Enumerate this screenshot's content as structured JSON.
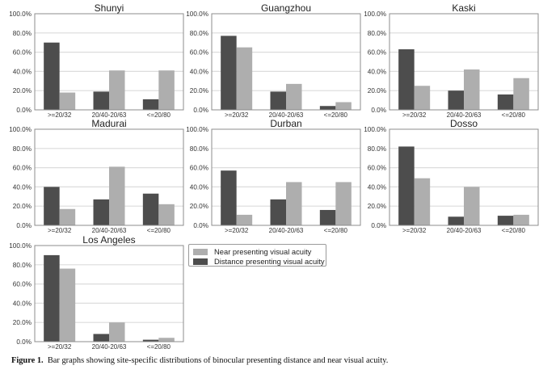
{
  "chart_data": {
    "type": "bar",
    "y_tick_labels": [
      "0.0%",
      "20.0%",
      "40.0%",
      "60.0%",
      "80.0%",
      "100.0%"
    ],
    "ylim": [
      0,
      100
    ],
    "grid": true,
    "categories": [
      ">=20/32",
      "20/40-20/63",
      "<=20/80"
    ],
    "series_names": [
      "Distance presenting visual acuity",
      "Near presenting visual acuity"
    ],
    "colors": {
      "distance": "#4d4d4d",
      "near": "#aeaeae",
      "grid": "#dcdcdc",
      "axis": "#8c8c8c"
    },
    "panels": [
      {
        "title": "Shunyi",
        "series": [
          {
            "name": "Distance presenting visual acuity",
            "values": [
              70,
              19,
              11
            ]
          },
          {
            "name": "Near presenting visual acuity",
            "values": [
              18,
              41,
              41
            ]
          }
        ]
      },
      {
        "title": "Guangzhou",
        "series": [
          {
            "name": "Distance presenting visual acuity",
            "values": [
              77,
              19,
              4
            ]
          },
          {
            "name": "Near presenting visual acuity",
            "values": [
              65,
              27,
              8
            ]
          }
        ]
      },
      {
        "title": "Kaski",
        "series": [
          {
            "name": "Distance presenting visual acuity",
            "values": [
              63,
              20,
              16
            ]
          },
          {
            "name": "Near presenting visual acuity",
            "values": [
              25,
              42,
              33
            ]
          }
        ]
      },
      {
        "title": "Madurai",
        "series": [
          {
            "name": "Distance presenting visual acuity",
            "values": [
              40,
              27,
              33
            ]
          },
          {
            "name": "Near presenting visual acuity",
            "values": [
              17,
              61,
              22
            ]
          }
        ]
      },
      {
        "title": "Durban",
        "series": [
          {
            "name": "Distance presenting visual acuity",
            "values": [
              57,
              27,
              16
            ]
          },
          {
            "name": "Near presenting visual acuity",
            "values": [
              11,
              45,
              45
            ]
          }
        ]
      },
      {
        "title": "Dosso",
        "series": [
          {
            "name": "Distance presenting visual acuity",
            "values": [
              82,
              9,
              10
            ]
          },
          {
            "name": "Near presenting visual acuity",
            "values": [
              49,
              40,
              11
            ]
          }
        ]
      },
      {
        "title": "Los Angeles",
        "series": [
          {
            "name": "Distance presenting visual acuity",
            "values": [
              90,
              8,
              2
            ]
          },
          {
            "name": "Near presenting visual acuity",
            "values": [
              76,
              20,
              4
            ]
          }
        ]
      }
    ],
    "legend": {
      "placement": "right of Los Angeles panel",
      "entries": [
        "Near presenting visual acuity",
        "Distance presenting visual acuity"
      ]
    }
  },
  "caption": {
    "label": "Figure 1.",
    "text": "Bar graphs showing site-specific distributions of binocular presenting distance and near visual acuity."
  }
}
